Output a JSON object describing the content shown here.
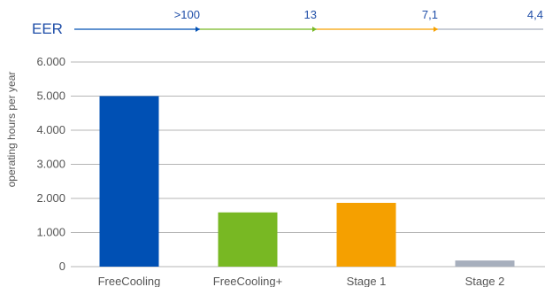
{
  "chart_data": {
    "type": "bar",
    "title": "",
    "xlabel": "",
    "ylabel": "operating hours per year",
    "ylim": [
      0,
      6000
    ],
    "yticks": [
      0,
      1000,
      2000,
      3000,
      4000,
      5000,
      6000
    ],
    "ytick_labels": [
      "0",
      "1.000",
      "2.000",
      "3.000",
      "4.000",
      "5.000",
      "6.000"
    ],
    "grid": true,
    "categories": [
      "FreeCooling",
      "FreeCooling+",
      "Stage 1",
      "Stage 2"
    ],
    "values": [
      5000,
      1590,
      1870,
      180
    ],
    "colors": [
      "#0050b4",
      "#78b823",
      "#f5a000",
      "#a7afbd"
    ],
    "eer": {
      "label": "EER",
      "values": [
        ">100",
        "13",
        "7,1",
        "4,4"
      ],
      "segment_colors": [
        "#0050b4",
        "#78b823",
        "#f5a000",
        "#a7afbd"
      ]
    }
  }
}
